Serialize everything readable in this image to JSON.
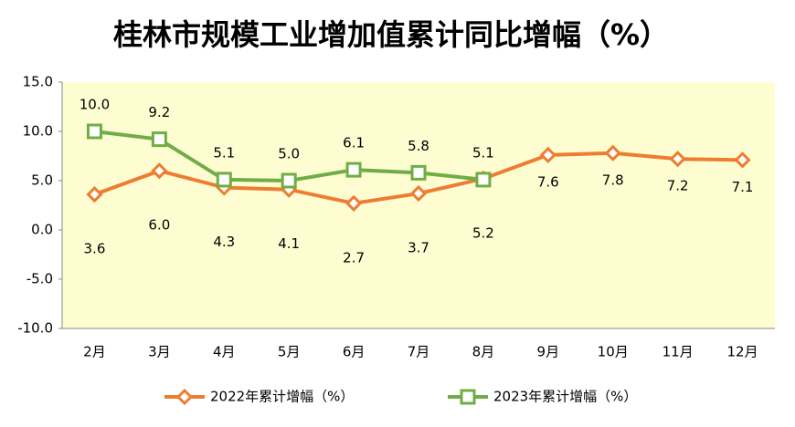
{
  "chart_data": {
    "type": "line",
    "title": "桂林市规模工业增加值累计同比增幅（%）",
    "categories": [
      "2月",
      "3月",
      "4月",
      "5月",
      "6月",
      "7月",
      "8月",
      "9月",
      "10月",
      "11月",
      "12月"
    ],
    "series": [
      {
        "name": "2022年累计增幅（%）",
        "color": "#ed7d31",
        "marker": "diamond",
        "values": [
          3.6,
          6.0,
          4.3,
          4.1,
          2.7,
          3.7,
          5.2,
          7.6,
          7.8,
          7.2,
          7.1
        ],
        "value_labels": [
          "3.6",
          "6.0",
          "4.3",
          "4.1",
          "2.7",
          "3.7",
          "5.2",
          "7.6",
          "7.8",
          "7.2",
          "7.1"
        ]
      },
      {
        "name": "2023年累计增幅（%）",
        "color": "#70ad47",
        "marker": "square",
        "values": [
          10.0,
          9.2,
          5.1,
          5.0,
          6.1,
          5.8,
          5.1,
          null,
          null,
          null,
          null
        ],
        "value_labels": [
          "10.0",
          "9.2",
          "5.1",
          "5.0",
          "6.1",
          "5.8",
          "5.1",
          null,
          null,
          null,
          null
        ]
      }
    ],
    "ylim": [
      -10,
      15
    ],
    "yticks": [
      {
        "value": -10,
        "label": "-10.0"
      },
      {
        "value": -5,
        "label": "-5.0"
      },
      {
        "value": 0,
        "label": "0.0"
      },
      {
        "value": 5,
        "label": "5.0"
      },
      {
        "value": 10,
        "label": "10.0"
      },
      {
        "value": 15,
        "label": "15.0"
      }
    ],
    "plot_background": "#fefdd2",
    "legend": "bottom"
  }
}
